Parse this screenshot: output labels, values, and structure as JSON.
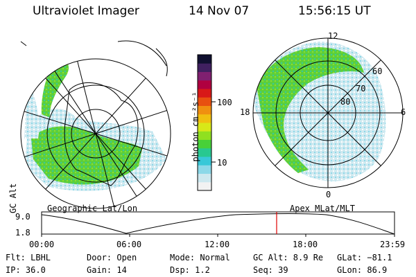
{
  "header": {
    "instrument": "Ultraviolet Imager",
    "date": "14 Nov 07",
    "time": "15:56:15 UT"
  },
  "colorbar": {
    "label": "photon cm⁻²s⁻¹",
    "ticks": [
      "100",
      "10"
    ],
    "colors": [
      "#f2f2f2",
      "#cde8ef",
      "#8cd8e8",
      "#38c8d8",
      "#28c890",
      "#48d038",
      "#90e020",
      "#d8e818",
      "#f0c010",
      "#f09010",
      "#e85010",
      "#d81818",
      "#b00040",
      "#802070",
      "#402060",
      "#101030"
    ]
  },
  "left_panel": {
    "projection_label": "Geographic Lat/Lon"
  },
  "right_panel": {
    "projection_label": "Apex MLat/MLT",
    "mlt_labels": {
      "top": "12",
      "right": "6",
      "bottom": "0",
      "left": "18"
    },
    "lat_labels": [
      "60",
      "70",
      "80"
    ]
  },
  "altitude_plot": {
    "ylabel": "GC Alt",
    "yticks": [
      "9.0",
      "1.8"
    ],
    "xticks": [
      "00:00",
      "06:00",
      "12:00",
      "18:00",
      "23:59"
    ],
    "current_time_marker": "15:56"
  },
  "status": {
    "filter": "Flt: LBHL",
    "door": "Door: Open",
    "mode": "Mode: Normal",
    "gc_alt": "GC Alt: 8.9 Re",
    "glat": "GLat: −81.1",
    "ip": "IP: 36.0",
    "gain": "Gain: 14",
    "dsp": "Dsp:    1.2",
    "seq": "Seq: 39",
    "glon": "GLon:  86.9"
  }
}
